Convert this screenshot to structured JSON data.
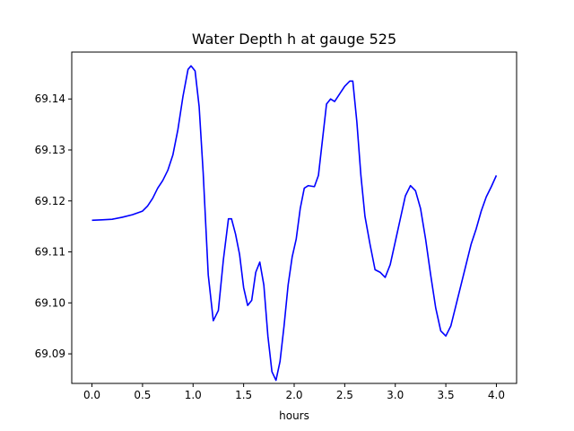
{
  "chart_data": {
    "type": "line",
    "title": "Water Depth h at gauge 525",
    "xlabel": "hours",
    "ylabel": "",
    "xlim": [
      -0.2,
      4.2
    ],
    "ylim": [
      69.0842,
      69.1492
    ],
    "xticks": [
      0.0,
      0.5,
      1.0,
      1.5,
      2.0,
      2.5,
      3.0,
      3.5,
      4.0
    ],
    "xtick_labels": [
      "0.0",
      "0.5",
      "1.0",
      "1.5",
      "2.0",
      "2.5",
      "3.0",
      "3.5",
      "4.0"
    ],
    "yticks": [
      69.09,
      69.1,
      69.11,
      69.12,
      69.13,
      69.14
    ],
    "ytick_labels": [
      "69.09",
      "69.10",
      "69.11",
      "69.12",
      "69.13",
      "69.14"
    ],
    "grid": false,
    "series": [
      {
        "color": "#0000ff",
        "x": [
          0.0,
          0.1,
          0.2,
          0.3,
          0.4,
          0.5,
          0.55,
          0.6,
          0.65,
          0.7,
          0.75,
          0.8,
          0.85,
          0.9,
          0.95,
          0.98,
          1.02,
          1.06,
          1.1,
          1.15,
          1.2,
          1.25,
          1.3,
          1.35,
          1.38,
          1.42,
          1.46,
          1.5,
          1.54,
          1.58,
          1.62,
          1.66,
          1.7,
          1.74,
          1.78,
          1.82,
          1.86,
          1.9,
          1.94,
          1.98,
          2.02,
          2.06,
          2.1,
          2.14,
          2.2,
          2.24,
          2.28,
          2.32,
          2.36,
          2.4,
          2.45,
          2.5,
          2.55,
          2.58,
          2.62,
          2.66,
          2.7,
          2.75,
          2.8,
          2.85,
          2.9,
          2.95,
          3.0,
          3.05,
          3.1,
          3.15,
          3.2,
          3.25,
          3.3,
          3.35,
          3.4,
          3.45,
          3.5,
          3.55,
          3.6,
          3.65,
          3.7,
          3.75,
          3.8,
          3.85,
          3.9,
          3.95,
          4.0
        ],
        "y": [
          69.1162,
          69.1163,
          69.1164,
          69.1168,
          69.1173,
          69.118,
          69.119,
          69.1205,
          69.1225,
          69.124,
          69.126,
          69.129,
          69.134,
          69.1405,
          69.1458,
          69.1465,
          69.1455,
          69.1385,
          69.1255,
          69.1055,
          69.0965,
          69.0985,
          69.1085,
          69.1165,
          69.1165,
          69.1135,
          69.1095,
          69.103,
          69.0995,
          69.1005,
          69.106,
          69.108,
          69.1035,
          69.0935,
          69.0865,
          69.0848,
          69.0885,
          69.0955,
          69.1035,
          69.109,
          69.1125,
          69.1185,
          69.1225,
          69.123,
          69.1228,
          69.125,
          69.132,
          69.139,
          69.14,
          69.1395,
          69.141,
          69.1425,
          69.1435,
          69.1435,
          69.1355,
          69.125,
          69.117,
          69.1115,
          69.1065,
          69.106,
          69.105,
          69.1075,
          69.112,
          69.1165,
          69.121,
          69.123,
          69.122,
          69.1185,
          69.1125,
          69.1055,
          69.099,
          69.0945,
          69.0935,
          69.0955,
          69.0995,
          69.1035,
          69.1075,
          69.1115,
          69.1145,
          69.118,
          69.1208,
          69.1228,
          69.125
        ]
      }
    ]
  }
}
